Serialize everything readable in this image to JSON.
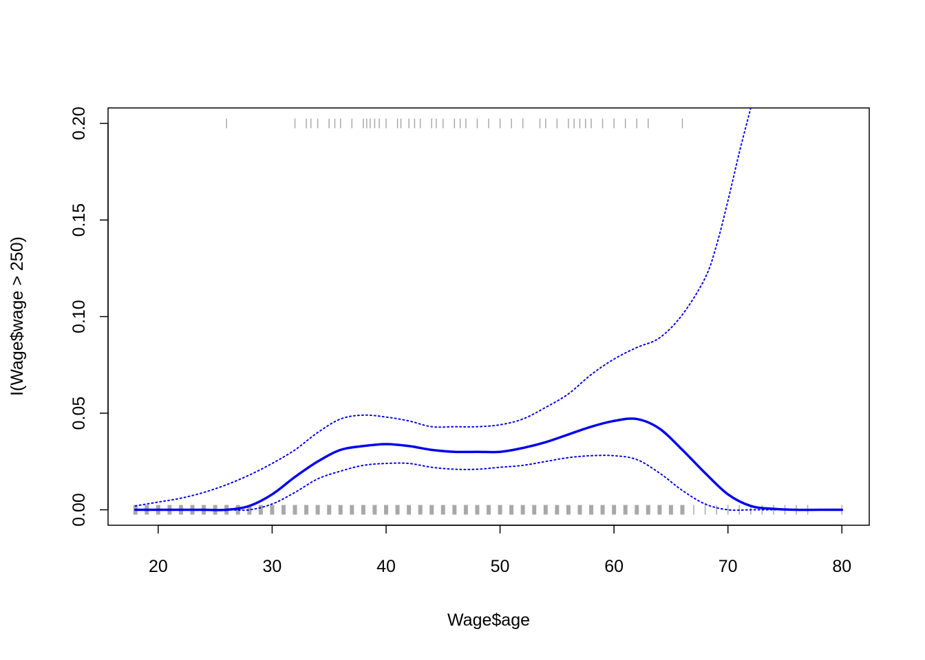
{
  "chart_data": {
    "type": "line",
    "title": "",
    "xlabel": "Wage$age",
    "ylabel": "I(Wage$wage > 250)",
    "xlim": [
      15.6,
      82.4
    ],
    "ylim": [
      -0.008,
      0.208
    ],
    "xticks": [
      20,
      30,
      40,
      50,
      60,
      70,
      80
    ],
    "yticks": [
      0.0,
      0.05,
      0.1,
      0.15,
      0.2
    ],
    "xtick_labels": [
      "20",
      "30",
      "40",
      "50",
      "60",
      "70",
      "80"
    ],
    "ytick_labels": [
      "0.00",
      "0.05",
      "0.10",
      "0.15",
      "0.20"
    ],
    "grid": false,
    "colors": {
      "fit": "#0000ee",
      "band": "#0000ee",
      "rug": "#a8a8a8",
      "axes": "#000000"
    },
    "series": [
      {
        "role": "fit",
        "x": [
          18,
          20,
          22,
          24,
          26,
          28,
          30,
          32,
          34,
          36,
          38,
          40,
          42,
          44,
          46,
          48,
          50,
          52,
          54,
          56,
          58,
          60,
          62,
          64,
          66,
          68,
          70,
          72,
          74,
          76,
          78,
          80
        ],
        "y": [
          0.0,
          0.0,
          0.0,
          0.0,
          0.0,
          0.002,
          0.008,
          0.017,
          0.025,
          0.031,
          0.033,
          0.034,
          0.033,
          0.031,
          0.03,
          0.03,
          0.03,
          0.032,
          0.035,
          0.039,
          0.043,
          0.046,
          0.047,
          0.042,
          0.031,
          0.019,
          0.008,
          0.002,
          0.0005,
          0.0,
          0.0,
          0.0
        ]
      },
      {
        "role": "upper-band",
        "x": [
          18,
          20,
          22,
          24,
          26,
          28,
          30,
          32,
          34,
          36,
          38,
          40,
          42,
          44,
          46,
          48,
          50,
          52,
          54,
          56,
          58,
          60,
          62,
          64,
          66,
          68,
          69,
          70,
          71,
          72
        ],
        "y": [
          0.002,
          0.004,
          0.006,
          0.009,
          0.013,
          0.018,
          0.024,
          0.031,
          0.04,
          0.047,
          0.049,
          0.048,
          0.046,
          0.043,
          0.043,
          0.043,
          0.044,
          0.047,
          0.053,
          0.06,
          0.07,
          0.078,
          0.084,
          0.089,
          0.101,
          0.12,
          0.137,
          0.16,
          0.185,
          0.208
        ]
      },
      {
        "role": "lower-band",
        "x": [
          18,
          20,
          22,
          24,
          26,
          28,
          30,
          32,
          34,
          36,
          38,
          40,
          42,
          44,
          46,
          48,
          50,
          52,
          54,
          56,
          58,
          60,
          62,
          64,
          66,
          68,
          70,
          72,
          74,
          76,
          78,
          80
        ],
        "y": [
          0.0,
          0.0,
          0.0,
          0.0,
          0.0,
          0.0,
          0.003,
          0.009,
          0.016,
          0.02,
          0.023,
          0.024,
          0.024,
          0.022,
          0.021,
          0.021,
          0.022,
          0.023,
          0.025,
          0.027,
          0.028,
          0.028,
          0.026,
          0.019,
          0.01,
          0.003,
          0.0,
          0.0,
          0.0,
          0.0,
          0.0,
          0.0
        ]
      }
    ],
    "rug_top": {
      "y": 0.2,
      "x": [
        26,
        32,
        33,
        33.4,
        34,
        35,
        35.5,
        36,
        37,
        38,
        38.3,
        38.6,
        39,
        39.4,
        40,
        41,
        41.3,
        42,
        42.5,
        43,
        44,
        44.4,
        45,
        46,
        46.5,
        47,
        48,
        49,
        50,
        51,
        52,
        53.5,
        54,
        55,
        56,
        56.5,
        57,
        57.5,
        58,
        59,
        60,
        61,
        62,
        63,
        66
      ]
    },
    "rug_bottom": {
      "y": 0.0,
      "x_dense": [
        18,
        80
      ],
      "x_sparse": [
        66,
        67,
        68,
        69,
        70,
        71,
        72,
        73,
        74,
        75,
        76,
        77,
        80
      ]
    }
  }
}
